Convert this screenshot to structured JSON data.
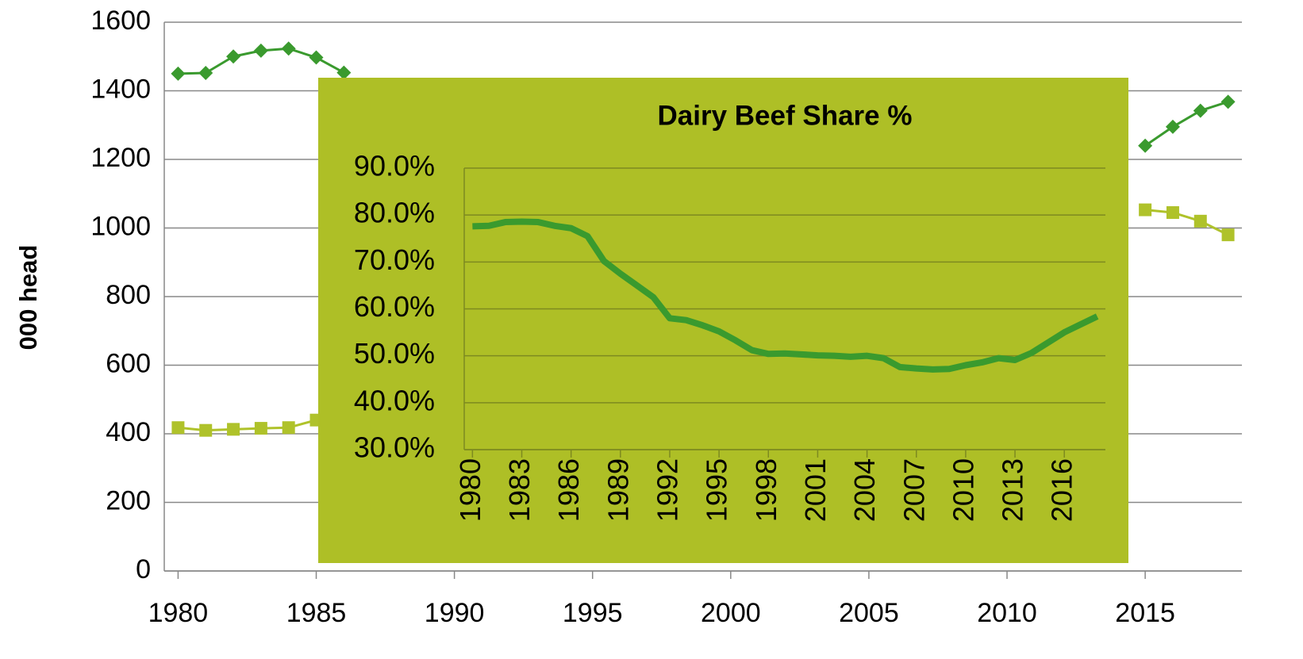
{
  "chart_data": [
    {
      "type": "line",
      "y_label": "000 head",
      "x": [
        1980,
        1981,
        1982,
        1983,
        1984,
        1985,
        1986,
        1987,
        1988,
        1989,
        1990,
        1991,
        1992,
        1993,
        1994,
        1995,
        1996,
        1997,
        1998,
        1999,
        2000,
        2001,
        2002,
        2003,
        2004,
        2005,
        2006,
        2007,
        2008,
        2009,
        2010,
        2011,
        2012,
        2013,
        2014,
        2015,
        2016,
        2017,
        2018
      ],
      "xlim": [
        1979.5,
        2018.5
      ],
      "xticks": [
        1980,
        1985,
        1990,
        1995,
        2000,
        2005,
        2010,
        2015
      ],
      "ylim": [
        0,
        1600
      ],
      "yticks": [
        0,
        200,
        400,
        600,
        800,
        1000,
        1200,
        1400,
        1600
      ],
      "grid": true,
      "series": [
        {
          "color": "#3a9a2e",
          "marker": "diamond",
          "values": [
            1450,
            1452,
            1500,
            1517,
            1523,
            1497,
            1453,
            null,
            null,
            null,
            null,
            null,
            null,
            null,
            null,
            null,
            null,
            null,
            null,
            null,
            null,
            null,
            null,
            null,
            null,
            null,
            null,
            null,
            null,
            null,
            null,
            null,
            null,
            null,
            null,
            1240,
            1295,
            1342,
            1368
          ]
        },
        {
          "color": "#afc22a",
          "marker": "square",
          "values": [
            418,
            410,
            413,
            416,
            418,
            440,
            null,
            null,
            null,
            null,
            null,
            null,
            null,
            null,
            null,
            null,
            null,
            null,
            null,
            null,
            null,
            null,
            null,
            null,
            null,
            null,
            null,
            null,
            null,
            null,
            null,
            null,
            null,
            null,
            null,
            1053,
            1045,
            1020,
            980
          ]
        }
      ]
    },
    {
      "type": "line",
      "title": "Dairy Beef Share %",
      "background": "#aebf26",
      "x": [
        1980,
        1981,
        1982,
        1983,
        1984,
        1985,
        1986,
        1987,
        1988,
        1989,
        1990,
        1991,
        1992,
        1993,
        1994,
        1995,
        1996,
        1997,
        1998,
        1999,
        2000,
        2001,
        2002,
        2003,
        2004,
        2005,
        2006,
        2007,
        2008,
        2009,
        2010,
        2011,
        2012,
        2013,
        2014,
        2015,
        2016,
        2017,
        2018
      ],
      "xlim": [
        1979.5,
        2018.5
      ],
      "xticks": [
        1980,
        1983,
        1986,
        1989,
        1992,
        1995,
        1998,
        2001,
        2004,
        2007,
        2010,
        2013,
        2016
      ],
      "ylim": [
        30,
        90
      ],
      "yticks": [
        {
          "value": 30,
          "label": "30.0%"
        },
        {
          "value": 40,
          "label": "40.0%"
        },
        {
          "value": 50,
          "label": "50.0%"
        },
        {
          "value": 60,
          "label": "60.0%"
        },
        {
          "value": 70,
          "label": "70.0%"
        },
        {
          "value": 80,
          "label": "80.0%"
        },
        {
          "value": 90,
          "label": "90.0%"
        }
      ],
      "grid": true,
      "series": [
        {
          "color": "#3a9a2e",
          "marker": "none",
          "values": [
            77.6,
            77.7,
            78.5,
            78.6,
            78.5,
            77.7,
            77.2,
            75.5,
            70.2,
            67.5,
            65,
            62.5,
            58,
            57.6,
            56.5,
            55.2,
            53.3,
            51.2,
            50.4,
            50.5,
            50.3,
            50.1,
            50,
            49.8,
            50,
            49.5,
            47.6,
            47.3,
            47.1,
            47.2,
            48,
            48.6,
            49.5,
            49.1,
            50.6,
            52.8,
            55,
            56.7,
            58.4
          ]
        }
      ]
    }
  ]
}
